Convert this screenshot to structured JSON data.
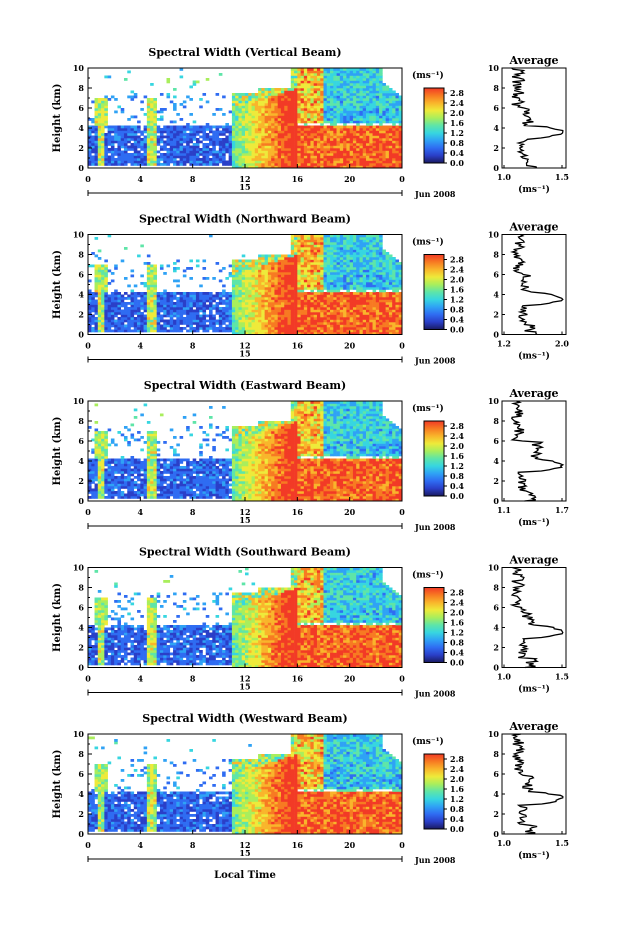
{
  "chart_data": {
    "type": "heatmap",
    "x_label": "Local Time",
    "date_label": "Jun 2008",
    "y_label": "Height (km)",
    "x_ticks": [
      "0",
      "4",
      "8",
      "12",
      "16",
      "20",
      "0"
    ],
    "x_day_label": "15",
    "y_ticks": [
      "0",
      "2",
      "4",
      "6",
      "8",
      "10"
    ],
    "y_range": [
      0,
      10
    ],
    "colorbar": {
      "unit": "(ms⁻¹)",
      "ticks": [
        "0.0",
        "0.4",
        "0.8",
        "1.2",
        "1.6",
        "2.0",
        "2.4",
        "2.8"
      ],
      "range": [
        0.0,
        3.0
      ],
      "colors": [
        "#1a1a60",
        "#2a3fc8",
        "#2f6cf2",
        "#2fa2f5",
        "#37d6e0",
        "#5ee5a8",
        "#a9ee5c",
        "#eeea3a",
        "#f9b52b",
        "#f77a22",
        "#f23a26"
      ]
    },
    "panels": [
      {
        "title": "Spectral Width (Vertical Beam)",
        "average_title": "Average",
        "average_xlabel": "(ms⁻¹)",
        "average_xticks": [
          "1.0",
          "1.5"
        ],
        "average_xrange": [
          1.0,
          1.5
        ]
      },
      {
        "title": "Spectral Width (Northward Beam)",
        "average_title": "Average",
        "average_xlabel": "(ms⁻¹)",
        "average_xticks": [
          "1.2",
          "2.0"
        ],
        "average_xrange": [
          1.2,
          2.0
        ]
      },
      {
        "title": "Spectral Width (Eastward Beam)",
        "average_title": "Average",
        "average_xlabel": "(ms⁻¹)",
        "average_xticks": [
          "1.1",
          "1.7"
        ],
        "average_xrange": [
          1.1,
          1.7
        ]
      },
      {
        "title": "Spectral Width (Southward Beam)",
        "average_title": "Average",
        "average_xlabel": "(ms⁻¹)",
        "average_xticks": [
          "1.0",
          "1.5"
        ],
        "average_xrange": [
          1.0,
          1.5
        ]
      },
      {
        "title": "Spectral Width (Westward Beam)",
        "average_title": "Average",
        "average_xlabel": "(ms⁻¹)",
        "average_xticks": [
          "1.0",
          "1.5"
        ],
        "average_xrange": [
          1.0,
          1.5
        ]
      }
    ]
  }
}
